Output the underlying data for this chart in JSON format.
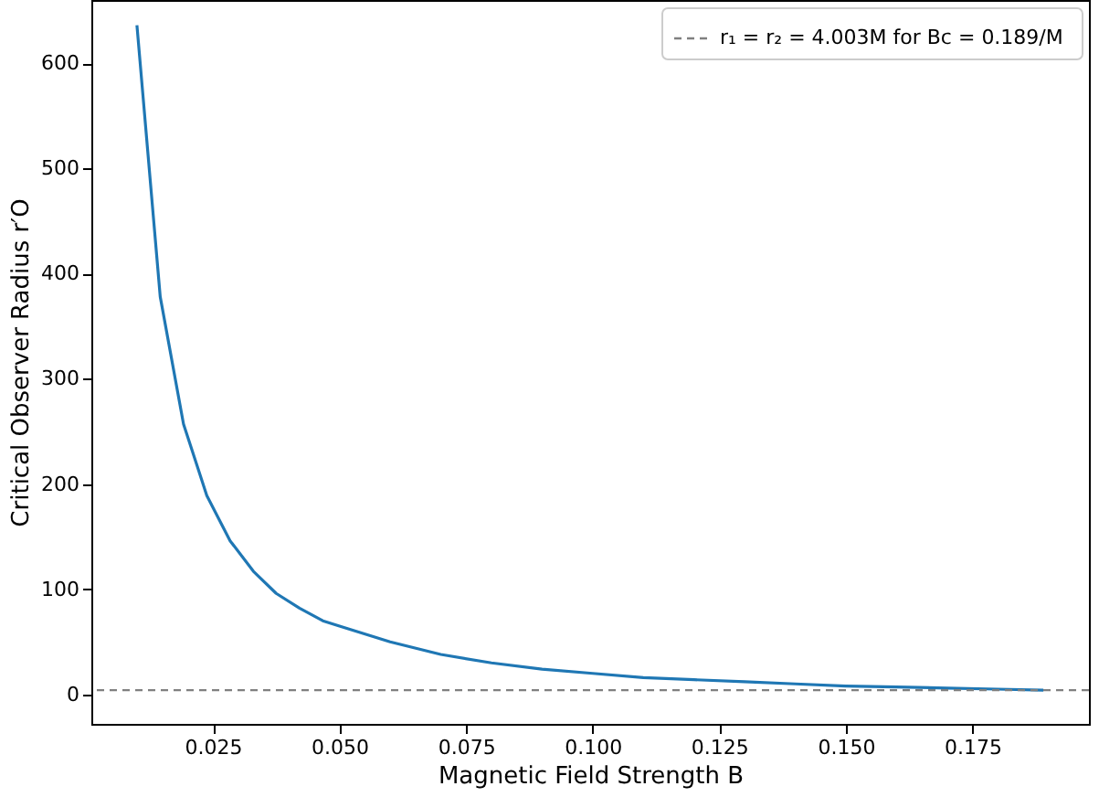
{
  "chart_data": {
    "type": "line",
    "xlabel": "Magnetic Field Strength B",
    "ylabel": "Critical Observer Radius r′O",
    "x": [
      0.01,
      0.0146,
      0.0192,
      0.0238,
      0.0284,
      0.033,
      0.0375,
      0.0421,
      0.0467,
      0.05,
      0.06,
      0.07,
      0.08,
      0.09,
      0.1,
      0.11,
      0.12,
      0.13,
      0.14,
      0.15,
      0.16,
      0.17,
      0.18,
      0.189
    ],
    "series": [
      {
        "color": "#1f77b4",
        "values": [
          636,
          378,
          257,
          189,
          146,
          117,
          96,
          82,
          70,
          65,
          50,
          38,
          30,
          24,
          20,
          16,
          14,
          12,
          10,
          8,
          7,
          6,
          5,
          4
        ]
      }
    ],
    "xlim": [
      0.001,
      0.198
    ],
    "ylim": [
      -28,
      660
    ],
    "xticks": [
      {
        "value": 0.025,
        "label": "0.025"
      },
      {
        "value": 0.05,
        "label": "0.050"
      },
      {
        "value": 0.075,
        "label": "0.075"
      },
      {
        "value": 0.1,
        "label": "0.100"
      },
      {
        "value": 0.125,
        "label": "0.125"
      },
      {
        "value": 0.15,
        "label": "0.150"
      },
      {
        "value": 0.175,
        "label": "0.175"
      }
    ],
    "yticks": [
      0,
      100,
      200,
      300,
      400,
      500,
      600
    ],
    "ref_lines": [
      {
        "axis": "y",
        "value": 4.003,
        "label": "r₁ = r₂ =  4.003M for Bc = 0.189/M",
        "color": "#808080",
        "line_style": "dashed"
      }
    ],
    "grid": false,
    "legend": "top right",
    "marker": "none",
    "line_style": "solid"
  }
}
